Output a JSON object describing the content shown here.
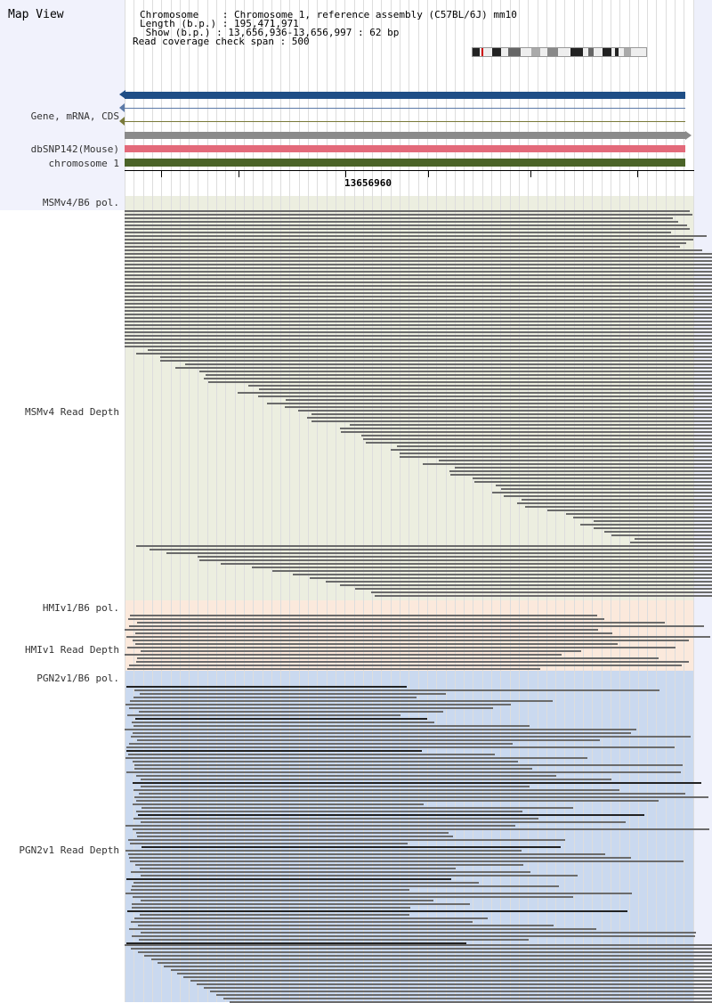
{
  "view_title": "Map View",
  "info": {
    "line1": "Chromosome    : Chromosome 1, reference assembly (C57BL/6J) mm10",
    "line2": "Length (b.p.) : 195,471,971",
    "line3": " Show (b.p.) : 13,656,936-13,656,997 : 62 bp",
    "line4": "Read coverage check span : 500"
  },
  "tracks": {
    "gene": "Gene, mRNA, CDS",
    "snp": "dbSNP142(Mouse)",
    "chromosome": "chromosome 1",
    "msm_pol": "MSMv4/B6 pol.",
    "msm_depth": "MSMv4 Read Depth",
    "hmi_pol": "HMIv1/B6 pol.",
    "hmi_depth": "HMIv1 Read Depth",
    "pgn_pol": "PGN2v1/B6 pol.",
    "pgn_depth": "PGN2v1 Read Depth"
  },
  "ruler_position": "13656960",
  "colors": {
    "msm_bg": "#eceee0",
    "hmi_bg": "#fbe9dc",
    "pgn_bg": "#cad9ef",
    "read": "#6b6b6b",
    "gene_bar": "#1f4e86",
    "snp_bar": "#e36a7a",
    "chromosome_bar": "#4b6428"
  }
}
